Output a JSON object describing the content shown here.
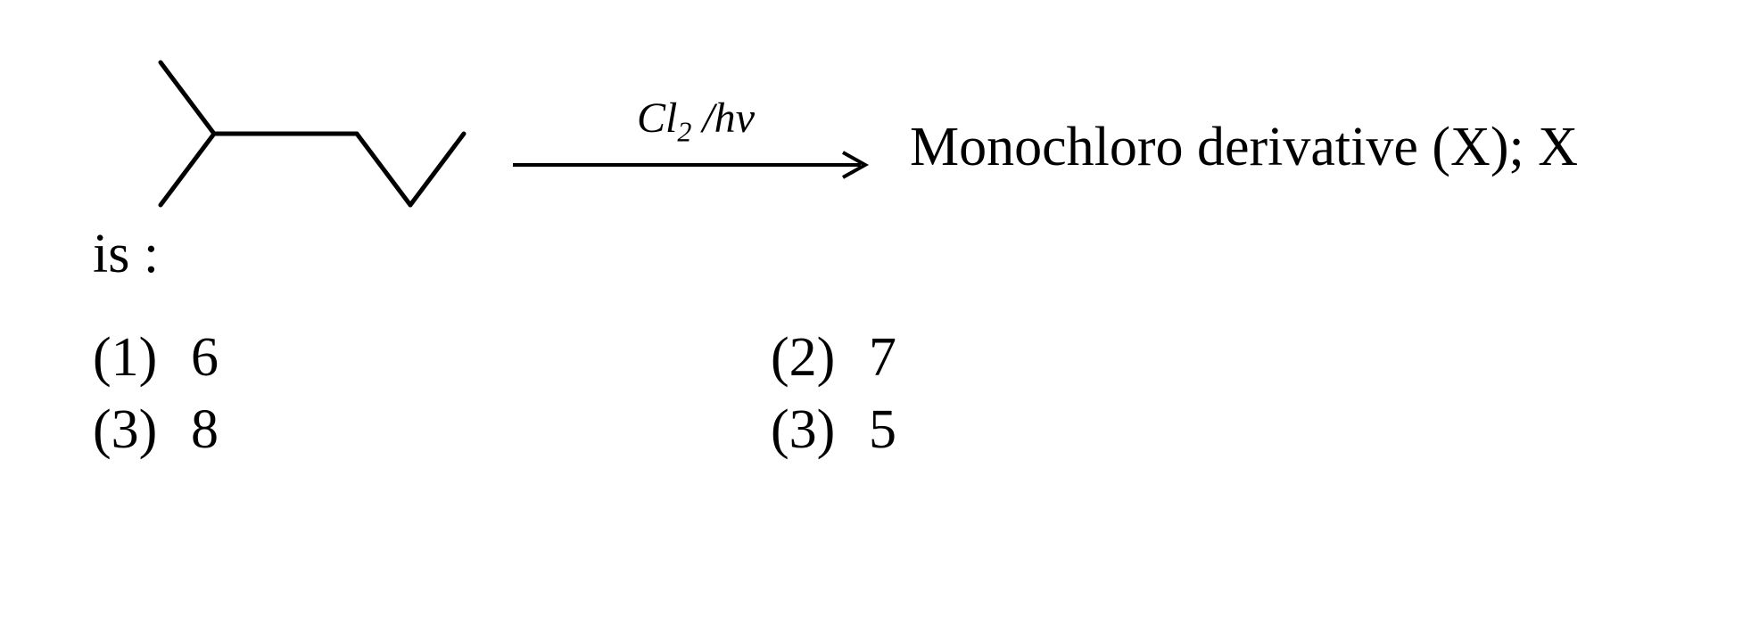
{
  "reaction": {
    "reagent_html": "Cl<sub>2</sub> /h<i>v</i>",
    "product_text": "Monochloro derivative (X); X",
    "continuation": "is :",
    "molecule_stroke": "#000000",
    "molecule_stroke_width": 5,
    "arrow_stroke": "#000000",
    "arrow_stroke_width": 4
  },
  "options": {
    "row1": {
      "a_label": "(1)",
      "a_value": "6",
      "b_label": "(2)",
      "b_value": "7"
    },
    "row2": {
      "a_label": "(3)",
      "a_value": "8",
      "b_label": "(3)",
      "b_value": "5"
    }
  }
}
